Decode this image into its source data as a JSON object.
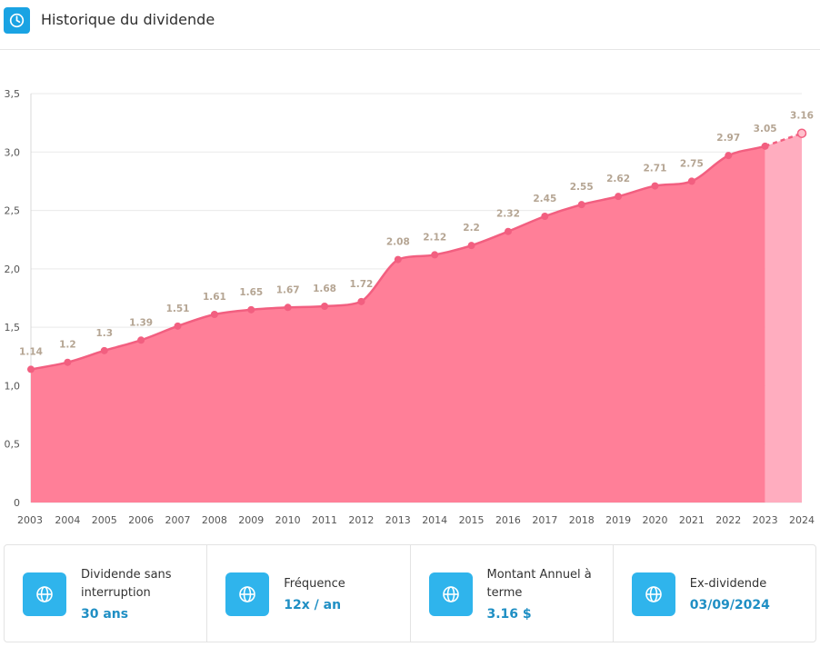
{
  "header": {
    "title": "Historique du dividende",
    "icon": "clock-icon",
    "icon_color": "#1aa3e3"
  },
  "chart_data": {
    "type": "area",
    "title": "",
    "xlabel": "",
    "ylabel": "",
    "categories": [
      "2003",
      "2004",
      "2005",
      "2006",
      "2007",
      "2008",
      "2009",
      "2010",
      "2011",
      "2012",
      "2013",
      "2014",
      "2015",
      "2016",
      "2017",
      "2018",
      "2019",
      "2020",
      "2021",
      "2022",
      "2023",
      "2024"
    ],
    "values": [
      1.14,
      1.2,
      1.3,
      1.39,
      1.51,
      1.61,
      1.65,
      1.67,
      1.68,
      1.72,
      2.08,
      2.12,
      2.2,
      2.32,
      2.45,
      2.55,
      2.62,
      2.71,
      2.75,
      2.97,
      3.05,
      3.16
    ],
    "value_labels": [
      "1.14",
      "1.2",
      "1.3",
      "1.39",
      "1.51",
      "1.61",
      "1.65",
      "1.67",
      "1.68",
      "1.72",
      "2.08",
      "2.12",
      "2.2",
      "2.32",
      "2.45",
      "2.55",
      "2.62",
      "2.71",
      "2.75",
      "2.97",
      "3.05",
      "3.16"
    ],
    "projected_from": "2023",
    "yticks": [
      0,
      0.5,
      1,
      1.5,
      2,
      2.5,
      3,
      3.5
    ],
    "ytick_labels": [
      "0",
      "0,5",
      "1,0",
      "1,5",
      "2,0",
      "2,5",
      "3,0",
      "3,5"
    ],
    "ylim": [
      0,
      3.5
    ],
    "grid": true,
    "colors": {
      "area": "#ff7f98",
      "projected_area": "#ffadbf",
      "line": "#f25f80",
      "label": "#b5a593"
    }
  },
  "stats": [
    {
      "icon": "globe-icon",
      "label": "Dividende sans interruption",
      "value": "30 ans"
    },
    {
      "icon": "globe-icon",
      "label": "Fréquence",
      "value": "12x / an"
    },
    {
      "icon": "globe-icon",
      "label": "Montant Annuel à terme",
      "value": "3.16 $"
    },
    {
      "icon": "globe-icon",
      "label": "Ex-dividende",
      "value": "03/09/2024"
    }
  ]
}
